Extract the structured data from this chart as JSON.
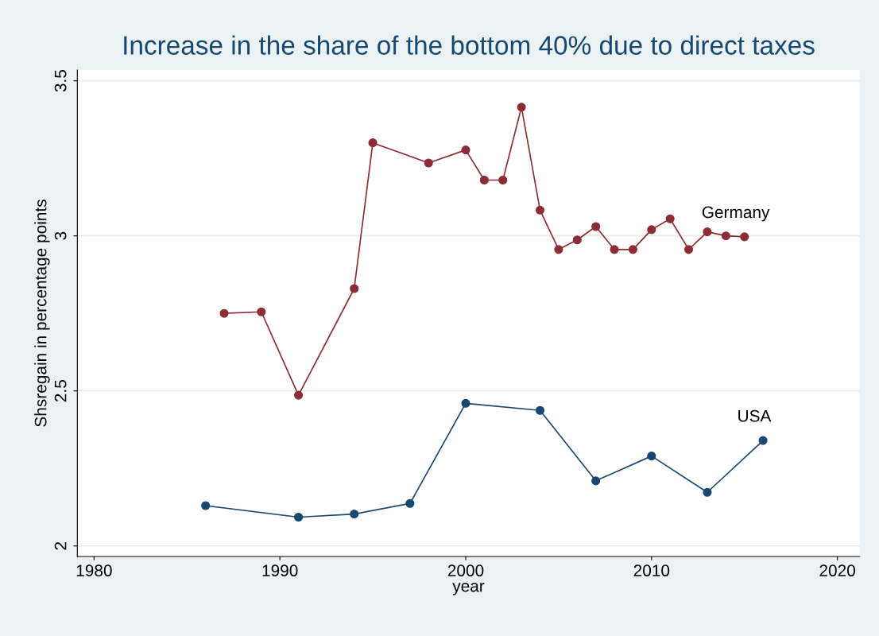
{
  "chart_data": {
    "type": "line",
    "title": "Increase in the share of the bottom 40% due to direct taxes",
    "xlabel": "year",
    "ylabel": "Shsregain in percentage points",
    "xlim": [
      1979.1,
      2021.2
    ],
    "xticks": [
      1980,
      1990,
      2000,
      2010,
      2020
    ],
    "ylim": [
      1.966,
      3.535
    ],
    "yticks": [
      2,
      2.5,
      3,
      3.5
    ],
    "grid": "y",
    "marker": "circle",
    "line_style": "solid",
    "series": [
      {
        "name": "Germany",
        "color": "#8c2d35",
        "x": [
          1987,
          1989,
          1991,
          1994,
          1995,
          1998,
          2000,
          2001,
          2002,
          2003,
          2004,
          2005,
          2006,
          2007,
          2008,
          2009,
          2010,
          2011,
          2012,
          2013,
          2014,
          2015
        ],
        "values": [
          2.75,
          2.755,
          2.486,
          2.83,
          3.3,
          3.235,
          3.277,
          3.18,
          3.18,
          3.415,
          3.083,
          2.956,
          2.987,
          3.03,
          2.956,
          2.956,
          3.02,
          3.055,
          2.956,
          3.013,
          3.0,
          2.997
        ]
      },
      {
        "name": "USA",
        "color": "#1a476f",
        "x": [
          1986,
          1991,
          1994,
          1997,
          2000,
          2004,
          2007,
          2010,
          2013,
          2016
        ],
        "values": [
          2.13,
          2.093,
          2.103,
          2.137,
          2.46,
          2.437,
          2.21,
          2.29,
          2.173,
          2.34
        ]
      }
    ]
  }
}
